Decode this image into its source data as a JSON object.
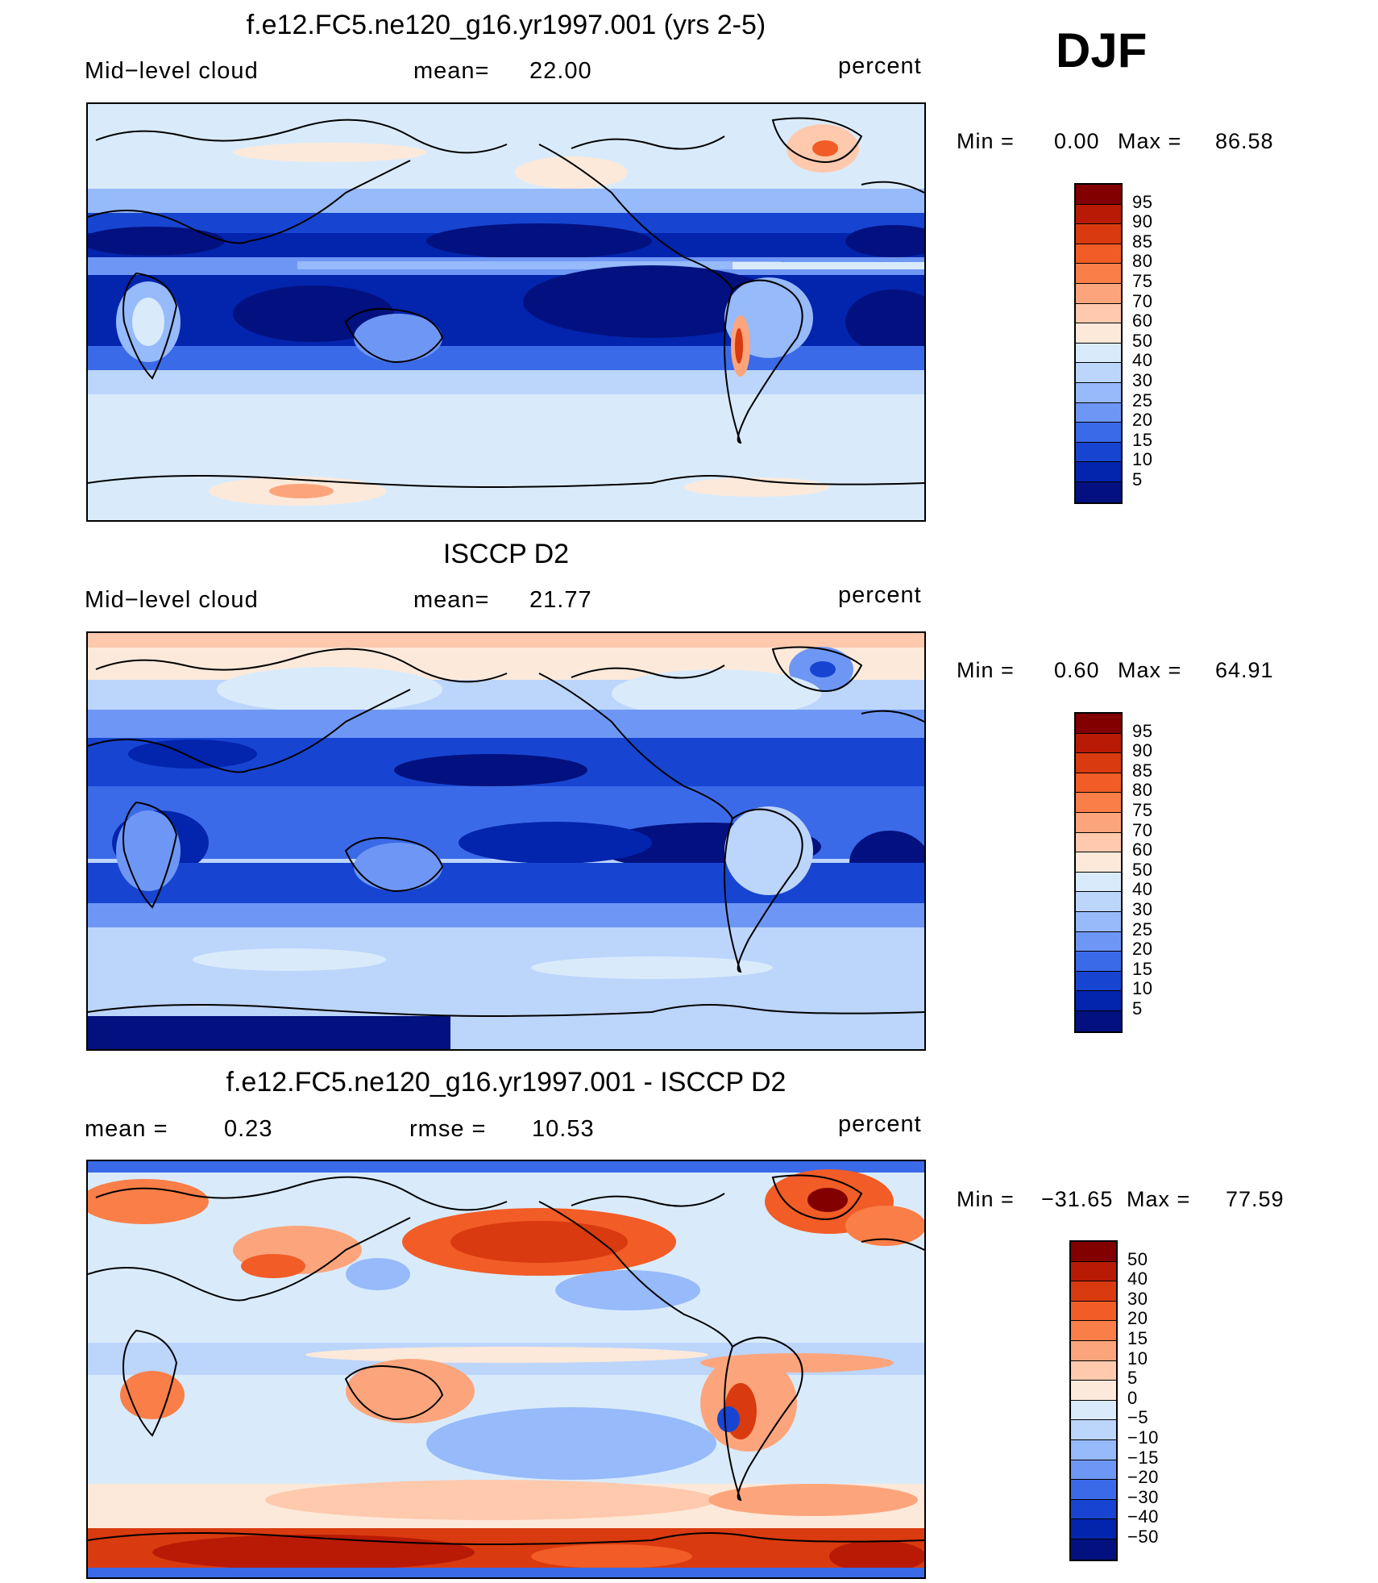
{
  "season": "DJF",
  "panels": [
    {
      "id": "model",
      "title": "f.e12.FC5.ne120_g16.yr1997.001 (yrs 2-5)",
      "left_label": "Mid−level cloud",
      "stat_label": "mean=",
      "stat_value": "22.00",
      "stat2_label": "",
      "stat2_value": "",
      "units": "percent",
      "min_label": "Min  =",
      "min_value": "0.00",
      "max_label": "Max  =",
      "max_value": "86.58"
    },
    {
      "id": "obs",
      "title": "ISCCP D2",
      "left_label": "Mid−level cloud",
      "stat_label": "mean=",
      "stat_value": "21.77",
      "stat2_label": "",
      "stat2_value": "",
      "units": "percent",
      "min_label": "Min  =",
      "min_value": "0.60",
      "max_label": "Max  =",
      "max_value": "64.91"
    },
    {
      "id": "diff",
      "title": "f.e12.FC5.ne120_g16.yr1997.001 - ISCCP D2",
      "left_label": "mean  =",
      "stat_label": "0.23",
      "stat_value": "",
      "stat2_label": "rmse  =",
      "stat2_value": "10.53",
      "units": "percent",
      "min_label": "Min  =",
      "min_value": "−31.65",
      "max_label": "Max  =",
      "max_value": "77.59"
    }
  ],
  "chart_data": [
    {
      "type": "heatmap",
      "title": "f.e12.FC5.ne120_g16.yr1997.001 (yrs 2-5)",
      "variable": "Mid-level cloud",
      "units": "percent",
      "mean": 22.0,
      "min": 0.0,
      "max": 86.58,
      "contour_levels": [
        5,
        10,
        15,
        20,
        25,
        30,
        40,
        50,
        60,
        70,
        75,
        80,
        85,
        90,
        95
      ],
      "colorbar_colors": [
        "#820000",
        "#b81a05",
        "#d93a0f",
        "#f25c26",
        "#fa7e48",
        "#fca57c",
        "#fec9ad",
        "#fde9da",
        "#d9ebfb",
        "#bcd5fb",
        "#96bafa",
        "#6e97f5",
        "#3b6ae8",
        "#1745d2",
        "#0324ad",
        "#02117f"
      ]
    },
    {
      "type": "heatmap",
      "title": "ISCCP D2",
      "variable": "Mid-level cloud",
      "units": "percent",
      "mean": 21.77,
      "min": 0.6,
      "max": 64.91,
      "contour_levels": [
        5,
        10,
        15,
        20,
        25,
        30,
        40,
        50,
        60,
        70,
        75,
        80,
        85,
        90,
        95
      ],
      "colorbar_colors": [
        "#820000",
        "#b81a05",
        "#d93a0f",
        "#f25c26",
        "#fa7e48",
        "#fca57c",
        "#fec9ad",
        "#fde9da",
        "#d9ebfb",
        "#bcd5fb",
        "#96bafa",
        "#6e97f5",
        "#3b6ae8",
        "#1745d2",
        "#0324ad",
        "#02117f"
      ]
    },
    {
      "type": "heatmap",
      "title": "f.e12.FC5.ne120_g16.yr1997.001 - ISCCP D2",
      "units": "percent",
      "mean": 0.23,
      "rmse": 10.53,
      "min": -31.65,
      "max": 77.59,
      "contour_levels": [
        "50",
        "40",
        "30",
        "20",
        "15",
        "10",
        "5",
        "0",
        "−5",
        "−10",
        "−15",
        "−20",
        "−30",
        "−40",
        "−50"
      ],
      "colorbar_colors": [
        "#820000",
        "#b81a05",
        "#d93a0f",
        "#f25c26",
        "#fa7e48",
        "#fca57c",
        "#fec9ad",
        "#fde9da",
        "#d9ebfb",
        "#bcd5fb",
        "#96bafa",
        "#6e97f5",
        "#3b6ae8",
        "#1745d2",
        "#0324ad",
        "#02117f"
      ]
    }
  ]
}
